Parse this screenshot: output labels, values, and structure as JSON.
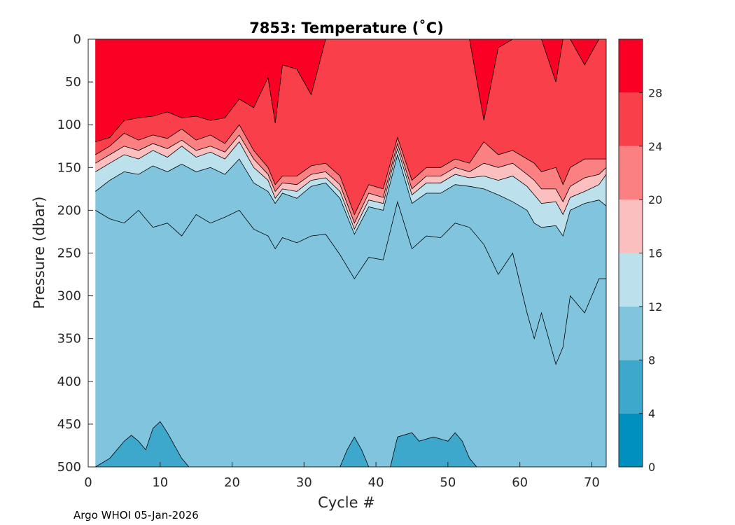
{
  "chart_data": {
    "type": "filled-contour",
    "title": "7853:  Temperature (˚C)",
    "xlabel": "Cycle #",
    "ylabel": "Pressure (dbar)",
    "x_range": [
      0,
      72
    ],
    "y_range": [
      0,
      500
    ],
    "y_reversed": true,
    "x_ticks": [
      0,
      10,
      20,
      30,
      40,
      50,
      60,
      70
    ],
    "y_ticks": [
      0,
      50,
      100,
      150,
      200,
      250,
      300,
      350,
      400,
      450,
      500
    ],
    "colorbar": {
      "levels": [
        0,
        4,
        8,
        12,
        16,
        20,
        24,
        28,
        32
      ],
      "tick_labels": [
        0,
        4,
        8,
        12,
        16,
        20,
        24,
        28
      ],
      "colors": [
        "#0090bf",
        "#3ea8cc",
        "#80c4de",
        "#bde1ec",
        "#fcbfbf",
        "#fb8082",
        "#f83f4a",
        "#f90024"
      ]
    },
    "isotherm_depths": {
      "cycles": [
        1,
        3,
        5,
        7,
        9,
        11,
        13,
        15,
        17,
        19,
        21,
        23,
        25,
        26,
        27,
        29,
        31,
        33,
        35,
        37,
        39,
        41,
        43,
        45,
        47,
        49,
        51,
        53,
        55,
        57,
        59,
        61,
        62,
        63,
        65,
        66,
        67,
        69,
        71,
        72
      ],
      "t28": [
        120,
        115,
        95,
        92,
        90,
        85,
        92,
        90,
        95,
        92,
        70,
        80,
        45,
        98,
        30,
        35,
        65,
        0,
        0,
        0,
        0,
        0,
        0,
        0,
        0,
        0,
        0,
        0,
        95,
        10,
        0,
        0,
        0,
        0,
        50,
        0,
        0,
        30,
        0,
        0
      ],
      "t24": [
        135,
        125,
        110,
        118,
        112,
        116,
        105,
        118,
        112,
        122,
        100,
        130,
        150,
        170,
        160,
        160,
        148,
        145,
        160,
        205,
        170,
        175,
        115,
        165,
        150,
        150,
        140,
        145,
        120,
        135,
        130,
        140,
        145,
        155,
        150,
        170,
        150,
        140,
        140,
        140
      ],
      "t20": [
        145,
        135,
        125,
        130,
        122,
        128,
        118,
        130,
        125,
        132,
        112,
        140,
        158,
        178,
        168,
        170,
        158,
        155,
        170,
        215,
        180,
        185,
        122,
        175,
        160,
        160,
        150,
        155,
        145,
        150,
        145,
        158,
        165,
        175,
        175,
        190,
        172,
        162,
        158,
        150
      ],
      "t16": [
        155,
        145,
        135,
        140,
        130,
        138,
        125,
        138,
        132,
        140,
        120,
        150,
        165,
        186,
        175,
        178,
        165,
        162,
        178,
        222,
        188,
        192,
        128,
        182,
        168,
        168,
        158,
        162,
        160,
        165,
        160,
        172,
        182,
        192,
        190,
        205,
        185,
        178,
        170,
        158
      ],
      "t12": [
        178,
        165,
        155,
        158,
        148,
        155,
        146,
        155,
        150,
        158,
        140,
        168,
        178,
        192,
        180,
        186,
        172,
        168,
        186,
        228,
        196,
        200,
        135,
        192,
        180,
        180,
        170,
        172,
        175,
        182,
        190,
        200,
        215,
        220,
        218,
        230,
        200,
        192,
        188,
        195
      ],
      "t10": [
        200,
        210,
        215,
        200,
        220,
        215,
        230,
        205,
        215,
        208,
        200,
        222,
        230,
        245,
        232,
        238,
        230,
        228,
        252,
        280,
        255,
        258,
        190,
        245,
        230,
        232,
        215,
        220,
        240,
        275,
        250,
        320,
        350,
        320,
        380,
        360,
        300,
        320,
        280,
        280
      ]
    },
    "isotherm_8": [
      [
        1,
        500
      ],
      [
        3,
        490
      ],
      [
        5,
        470
      ],
      [
        6,
        463
      ],
      [
        7,
        470
      ],
      [
        8,
        480
      ],
      [
        9,
        455
      ],
      [
        10,
        447
      ],
      [
        11,
        460
      ],
      [
        12,
        475
      ],
      [
        13,
        490
      ],
      [
        14,
        500
      ]
    ],
    "isotherm_8_b": [
      [
        35,
        500
      ],
      [
        36,
        480
      ],
      [
        37,
        465
      ],
      [
        38,
        480
      ],
      [
        39,
        500
      ]
    ],
    "isotherm_8_c": [
      [
        42,
        500
      ],
      [
        43,
        465
      ],
      [
        45,
        460
      ],
      [
        46,
        470
      ],
      [
        48,
        465
      ],
      [
        50,
        470
      ],
      [
        51,
        460
      ],
      [
        52,
        470
      ],
      [
        53,
        490
      ],
      [
        54,
        500
      ]
    ]
  },
  "footer": "Argo WHOI 05-Jan-2026"
}
